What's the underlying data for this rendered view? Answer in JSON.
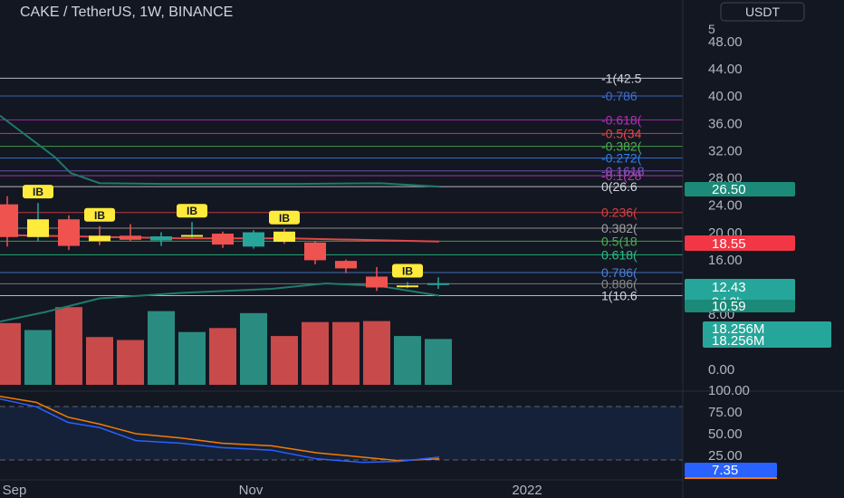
{
  "header": {
    "title": "CAKE / TetherUS, 1W, BINANCE"
  },
  "currency_button": {
    "label": "USDT"
  },
  "price_axis": {
    "top_clipped_label": "5",
    "labels": [
      "48.00",
      "44.00",
      "40.00",
      "36.00",
      "32.00",
      "28.00",
      "24.00",
      "20.00",
      "16.00",
      "12.00",
      "8.00"
    ],
    "volume_zero_label": "0.00"
  },
  "indicator_axis": {
    "labels": [
      "100.00",
      "75.00",
      "50.00",
      "25.00"
    ]
  },
  "time_axis": {
    "labels": [
      "Sep",
      "Nov",
      "2022"
    ]
  },
  "badges": {
    "ema_upper": "26.50",
    "ema_red": "18.55",
    "last_price": "12.43",
    "countdown": "2d 2h",
    "ema_lower": "10.59",
    "volume_1": "18.256M",
    "volume_2": "18.256M",
    "indicator": "7.35"
  },
  "colors": {
    "background": "#131722",
    "bull": "#26a69a",
    "bear": "#ef5350",
    "volume_bull": "#2a8c80",
    "volume_bear": "#c94a4a",
    "ib_marker": "#ffeb3b",
    "ema_green": "#1f7a6a",
    "ema_red": "#e04848",
    "badge_teal": "#1b8a78",
    "badge_red": "#f23645",
    "badge_blue": "#2962ff"
  },
  "chart_data": {
    "type": "candlestick",
    "symbol": "CAKE / TetherUS",
    "interval": "1W",
    "exchange": "BINANCE",
    "candles": [
      {
        "o": 24.0,
        "h": 25.2,
        "l": 17.8,
        "c": 19.2,
        "inside_bar": false
      },
      {
        "o": 19.2,
        "h": 24.2,
        "l": 18.6,
        "c": 21.8,
        "inside_bar": true
      },
      {
        "o": 21.8,
        "h": 22.4,
        "l": 17.3,
        "c": 17.9,
        "inside_bar": false
      },
      {
        "o": 19.4,
        "h": 20.8,
        "l": 18.0,
        "c": 18.6,
        "inside_bar": true
      },
      {
        "o": 19.4,
        "h": 21.1,
        "l": 18.6,
        "c": 18.8,
        "inside_bar": false
      },
      {
        "o": 18.7,
        "h": 19.9,
        "l": 17.9,
        "c": 19.3,
        "inside_bar": false
      },
      {
        "o": 19.5,
        "h": 21.4,
        "l": 19.0,
        "c": 19.5,
        "inside_bar": true
      },
      {
        "o": 19.7,
        "h": 20.0,
        "l": 17.6,
        "c": 18.1,
        "inside_bar": false
      },
      {
        "o": 17.8,
        "h": 20.2,
        "l": 17.5,
        "c": 19.9,
        "inside_bar": false
      },
      {
        "o": 20.0,
        "h": 20.4,
        "l": 18.2,
        "c": 18.5,
        "inside_bar": true
      },
      {
        "o": 18.4,
        "h": 18.6,
        "l": 15.2,
        "c": 15.8,
        "inside_bar": false
      },
      {
        "o": 15.7,
        "h": 15.9,
        "l": 13.9,
        "c": 14.6,
        "inside_bar": false
      },
      {
        "o": 13.4,
        "h": 14.8,
        "l": 11.3,
        "c": 11.8,
        "inside_bar": false
      },
      {
        "o": 12.0,
        "h": 12.6,
        "l": 11.7,
        "c": 12.1,
        "inside_bar": true
      },
      {
        "o": 12.2,
        "h": 13.3,
        "l": 11.6,
        "c": 12.43,
        "inside_bar": false
      }
    ],
    "volume_scale_label": "18.256M",
    "fib_levels": [
      {
        "label": "-1(42.5",
        "color": "#d1d4dc",
        "price": 42.5
      },
      {
        "label": "-0.786",
        "color": "#3f6fd1",
        "price": 39.9
      },
      {
        "label": "-0.618(",
        "color": "#b62fb8",
        "price": 36.4
      },
      {
        "label": "-0.5(34",
        "color": "#e04848",
        "price": 34.4
      },
      {
        "label": "-0.382(",
        "color": "#4caf50",
        "price": 32.5
      },
      {
        "label": "-0.272(",
        "color": "#2f80ed",
        "price": 30.8
      },
      {
        "label": "-0.1618",
        "color": "#7e57c2",
        "price": 28.9
      },
      {
        "label": "-0.1(28",
        "color": "#b03fb0",
        "price": 28.2
      },
      {
        "label": "0(26.6",
        "color": "#d1d4dc",
        "price": 26.6
      },
      {
        "label": "0.236(",
        "color": "#d84040",
        "price": 22.8
      },
      {
        "label": "0.382(",
        "color": "#9e9e9e",
        "price": 20.5
      },
      {
        "label": "0.5(18",
        "color": "#4caf50",
        "price": 18.6
      },
      {
        "label": "0.618(",
        "color": "#26c281",
        "price": 16.6
      },
      {
        "label": "0.786(",
        "color": "#4a7fd6",
        "price": 14.0
      },
      {
        "label": "0.886(",
        "color": "#888888",
        "price": 12.35
      },
      {
        "label": "1(10.6",
        "color": "#d1d4dc",
        "price": 10.6
      }
    ],
    "ib_label": "IB",
    "ylim": [
      4,
      50
    ],
    "indicator_range": [
      0,
      100
    ]
  }
}
